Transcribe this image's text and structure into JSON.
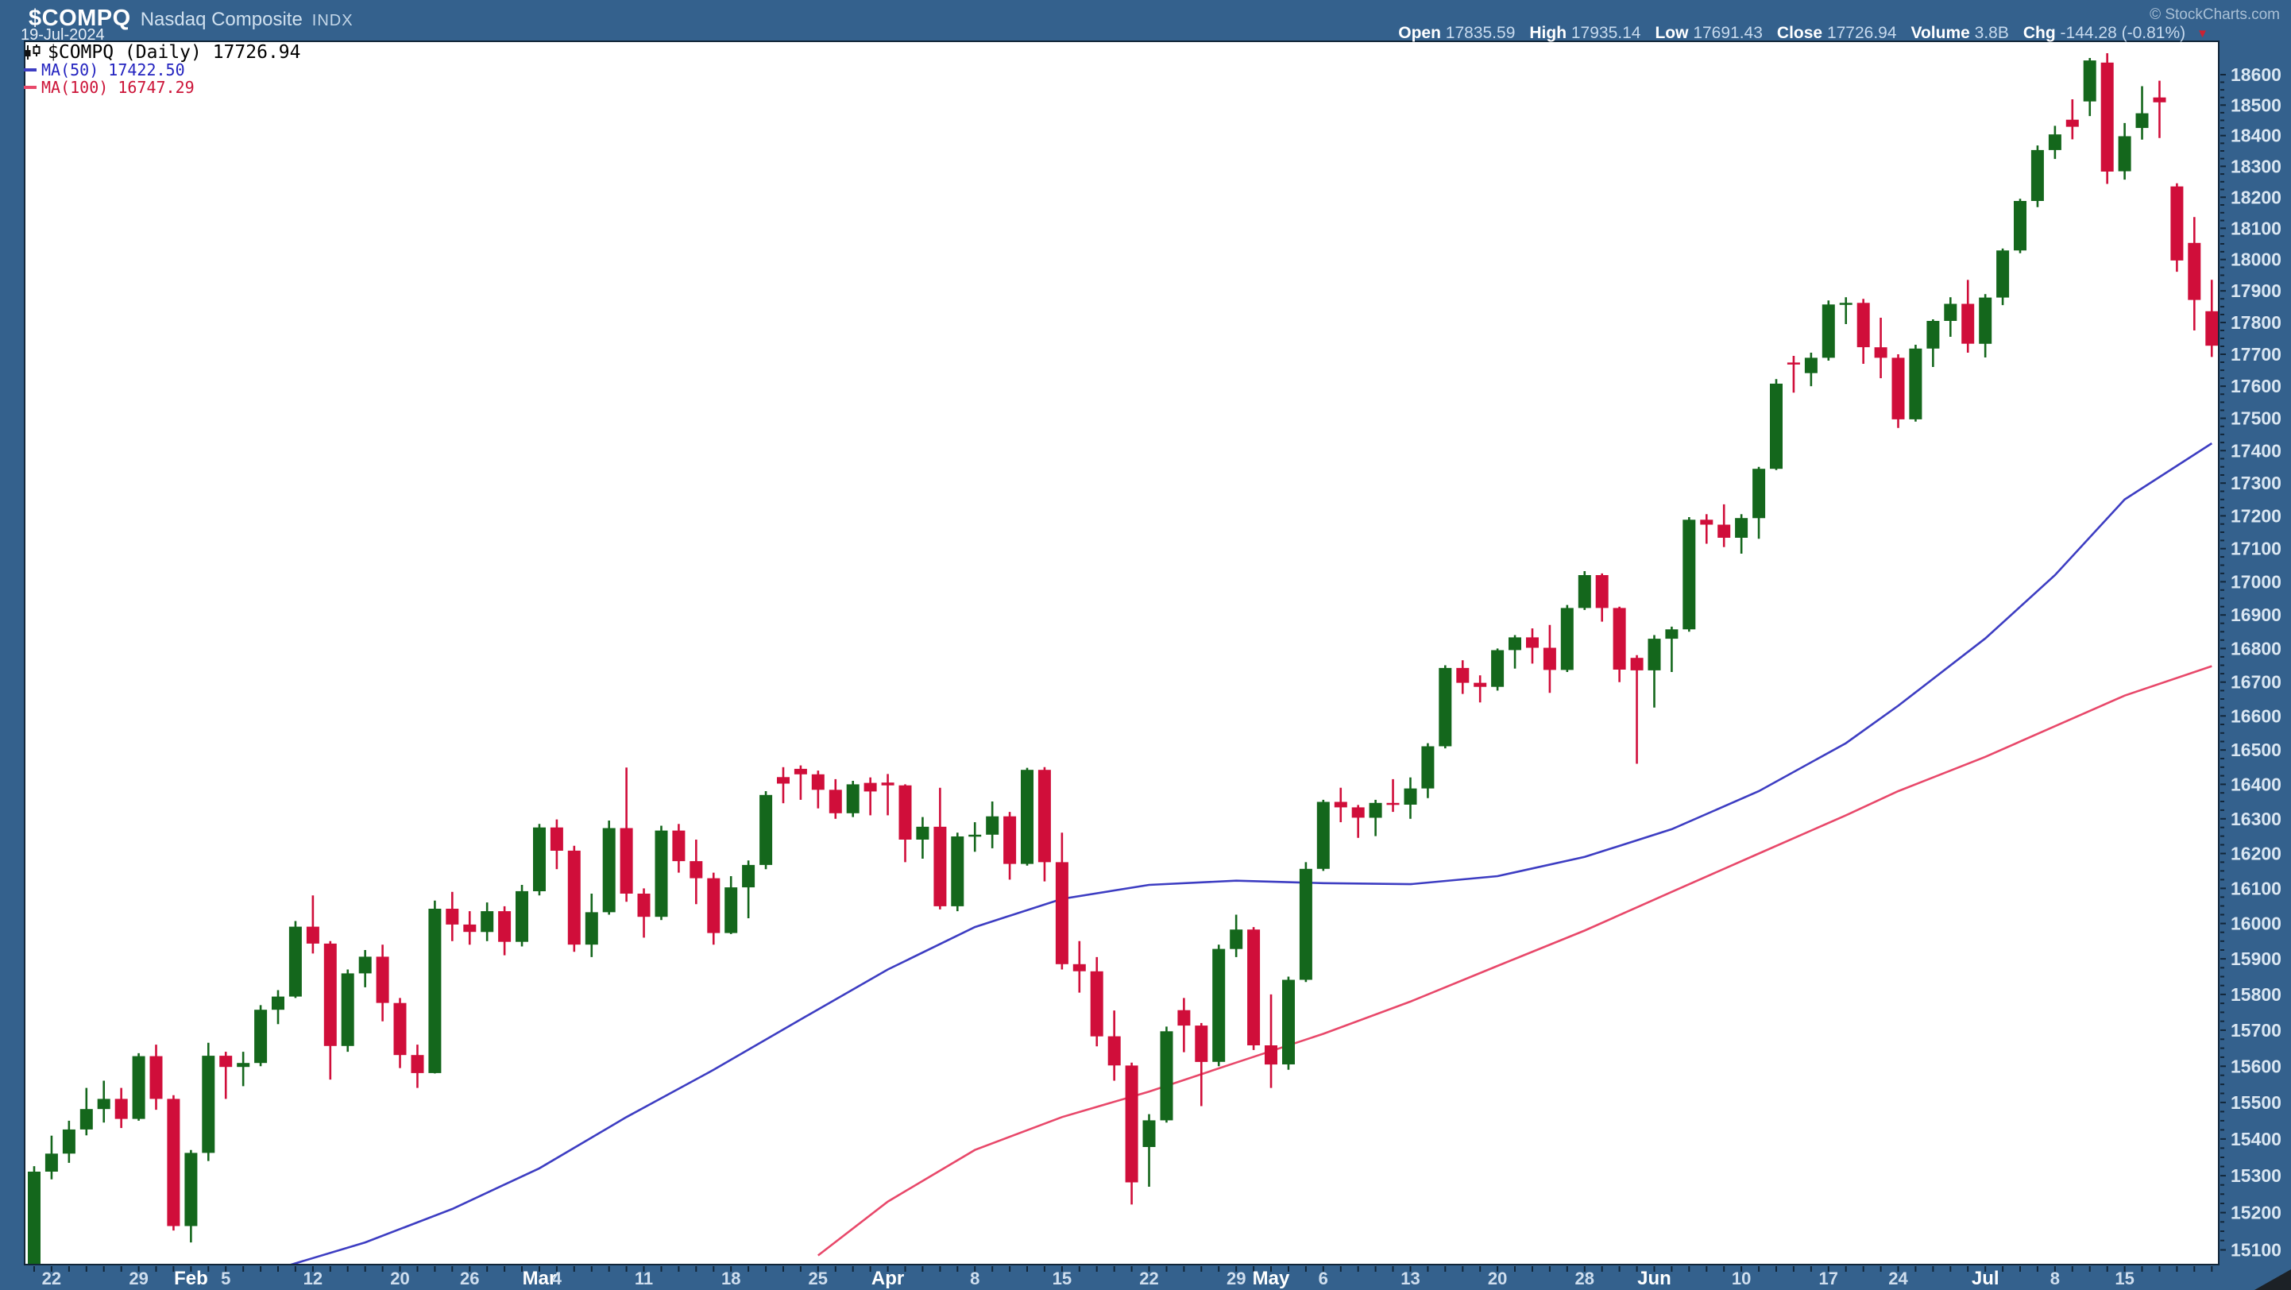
{
  "header": {
    "symbol": "$COMPQ",
    "name": "Nasdaq Composite",
    "exchange": "INDX",
    "date": "19-Jul-2024",
    "copyright": "© StockCharts.com"
  },
  "quote": {
    "open_label": "Open",
    "open": "17835.59",
    "high_label": "High",
    "high": "17935.14",
    "low_label": "Low",
    "low": "17691.43",
    "close_label": "Close",
    "close": "17726.94",
    "volume_label": "Volume",
    "volume": "3.8B",
    "chg_label": "Chg",
    "chg": "-144.28 (-0.81%)"
  },
  "legend": {
    "main": "$COMPQ (Daily) 17726.94",
    "ma50": "MA(50) 17422.50",
    "ma100": "MA(100) 16747.29"
  },
  "colors": {
    "navy": "#34618d",
    "border": "#122639",
    "tick": "#122639",
    "up": "#14671c",
    "down": "#d00e3a",
    "ma50": "#3d3dc2",
    "ma100": "#e8486a",
    "y_label": "#d9e6f2",
    "x_day_label": "#cfdeee",
    "x_month_label": "#ffffff",
    "legend_ma50_text": "#2424c0",
    "legend_ma100_text": "#cc1438"
  },
  "chart_data": {
    "type": "candlestick",
    "symbol": "$COMPQ",
    "timeframe": "Daily",
    "scale": "log",
    "grid": false,
    "y_axis": {
      "min": 15100,
      "max": 18600,
      "label_step": 100,
      "minor_step": 25
    },
    "x_labels": [
      {
        "i": 1,
        "t": "22",
        "bold": false
      },
      {
        "i": 6,
        "t": "29",
        "bold": false
      },
      {
        "i": 9,
        "t": "Feb",
        "bold": true
      },
      {
        "i": 11,
        "t": "5",
        "bold": false
      },
      {
        "i": 16,
        "t": "12",
        "bold": false
      },
      {
        "i": 21,
        "t": "20",
        "bold": false
      },
      {
        "i": 25,
        "t": "26",
        "bold": false
      },
      {
        "i": 29,
        "t": "Mar",
        "bold": true
      },
      {
        "i": 30,
        "t": "4",
        "bold": false
      },
      {
        "i": 35,
        "t": "11",
        "bold": false
      },
      {
        "i": 40,
        "t": "18",
        "bold": false
      },
      {
        "i": 45,
        "t": "25",
        "bold": false
      },
      {
        "i": 49,
        "t": "Apr",
        "bold": true
      },
      {
        "i": 54,
        "t": "8",
        "bold": false
      },
      {
        "i": 59,
        "t": "15",
        "bold": false
      },
      {
        "i": 64,
        "t": "22",
        "bold": false
      },
      {
        "i": 69,
        "t": "29",
        "bold": false
      },
      {
        "i": 71,
        "t": "May",
        "bold": true
      },
      {
        "i": 74,
        "t": "6",
        "bold": false
      },
      {
        "i": 79,
        "t": "13",
        "bold": false
      },
      {
        "i": 84,
        "t": "20",
        "bold": false
      },
      {
        "i": 89,
        "t": "28",
        "bold": false
      },
      {
        "i": 93,
        "t": "Jun",
        "bold": true
      },
      {
        "i": 98,
        "t": "10",
        "bold": false
      },
      {
        "i": 103,
        "t": "17",
        "bold": false
      },
      {
        "i": 107,
        "t": "24",
        "bold": false
      },
      {
        "i": 112,
        "t": "Jul",
        "bold": true
      },
      {
        "i": 116,
        "t": "8",
        "bold": false
      },
      {
        "i": 120,
        "t": "15",
        "bold": false
      }
    ],
    "candles": [
      [
        "Jan 19",
        15056,
        15326,
        15045,
        15311
      ],
      [
        "Jan 22",
        15311,
        15409,
        15290,
        15360
      ],
      [
        "Jan 23",
        15360,
        15450,
        15335,
        15426
      ],
      [
        "Jan 24",
        15426,
        15540,
        15410,
        15482
      ],
      [
        "Jan 25",
        15482,
        15560,
        15445,
        15510
      ],
      [
        "Jan 26",
        15510,
        15540,
        15430,
        15455
      ],
      [
        "Jan 29",
        15455,
        15636,
        15450,
        15628
      ],
      [
        "Jan 30",
        15628,
        15660,
        15480,
        15510
      ],
      [
        "Jan 31",
        15510,
        15520,
        15152,
        15164
      ],
      [
        "Feb 1",
        15164,
        15370,
        15120,
        15362
      ],
      [
        "Feb 2",
        15362,
        15665,
        15340,
        15629
      ],
      [
        "Feb 5",
        15629,
        15640,
        15510,
        15598
      ],
      [
        "Feb 6",
        15598,
        15640,
        15545,
        15609
      ],
      [
        "Feb 7",
        15609,
        15770,
        15600,
        15757
      ],
      [
        "Feb 8",
        15757,
        15812,
        15717,
        15794
      ],
      [
        "Feb 9",
        15794,
        16007,
        15790,
        15991
      ],
      [
        "Feb 12",
        15991,
        16080,
        15915,
        15943
      ],
      [
        "Feb 13",
        15943,
        15950,
        15563,
        15656
      ],
      [
        "Feb 14",
        15656,
        15870,
        15640,
        15859
      ],
      [
        "Feb 15",
        15859,
        15925,
        15820,
        15906
      ],
      [
        "Feb 16",
        15906,
        15940,
        15725,
        15776
      ],
      [
        "Feb 20",
        15776,
        15790,
        15595,
        15631
      ],
      [
        "Feb 21",
        15631,
        15660,
        15540,
        15581
      ],
      [
        "Feb 22",
        15581,
        16065,
        15580,
        16042
      ],
      [
        "Feb 23",
        16042,
        16090,
        15950,
        15997
      ],
      [
        "Feb 26",
        15997,
        16035,
        15940,
        15976
      ],
      [
        "Feb 27",
        15976,
        16060,
        15950,
        16035
      ],
      [
        "Feb 28",
        16035,
        16049,
        15910,
        15948
      ],
      [
        "Feb 29",
        15948,
        16110,
        15935,
        16092
      ],
      [
        "Mar 1",
        16092,
        16285,
        16080,
        16275
      ],
      [
        "Mar 4",
        16275,
        16298,
        16155,
        16208
      ],
      [
        "Mar 5",
        16208,
        16222,
        15920,
        15940
      ],
      [
        "Mar 6",
        15940,
        16085,
        15905,
        16032
      ],
      [
        "Mar 7",
        16032,
        16295,
        16025,
        16273
      ],
      [
        "Mar 8",
        16273,
        16449,
        16062,
        16085
      ],
      [
        "Mar 11",
        16085,
        16100,
        15960,
        16019
      ],
      [
        "Mar 12",
        16019,
        16280,
        16010,
        16266
      ],
      [
        "Mar 13",
        16266,
        16285,
        16145,
        16178
      ],
      [
        "Mar 14",
        16178,
        16240,
        16055,
        16129
      ],
      [
        "Mar 15",
        16129,
        16145,
        15940,
        15973
      ],
      [
        "Mar 18",
        15973,
        16135,
        15970,
        16103
      ],
      [
        "Mar 19",
        16103,
        16180,
        16015,
        16167
      ],
      [
        "Mar 20",
        16167,
        16380,
        16155,
        16369
      ],
      [
        "Mar 21",
        16421,
        16450,
        16345,
        16402
      ],
      [
        "Mar 22",
        16445,
        16455,
        16355,
        16429
      ],
      [
        "Mar 25",
        16429,
        16440,
        16330,
        16384
      ],
      [
        "Mar 26",
        16384,
        16415,
        16300,
        16316
      ],
      [
        "Mar 27",
        16316,
        16410,
        16305,
        16400
      ],
      [
        "Mar 28",
        16404,
        16420,
        16310,
        16379
      ],
      [
        "Apr 1",
        16405,
        16430,
        16310,
        16397
      ],
      [
        "Apr 2",
        16397,
        16400,
        16175,
        16240
      ],
      [
        "Apr 3",
        16240,
        16305,
        16185,
        16277
      ],
      [
        "Apr 4",
        16277,
        16390,
        16040,
        16049
      ],
      [
        "Apr 5",
        16049,
        16260,
        16035,
        16249
      ],
      [
        "Apr 8",
        16249,
        16290,
        16205,
        16254
      ],
      [
        "Apr 9",
        16254,
        16350,
        16215,
        16307
      ],
      [
        "Apr 10",
        16307,
        16320,
        16125,
        16170
      ],
      [
        "Apr 11",
        16170,
        16448,
        16165,
        16442
      ],
      [
        "Apr 12",
        16442,
        16450,
        16120,
        16175
      ],
      [
        "Apr 15",
        16175,
        16260,
        15870,
        15885
      ],
      [
        "Apr 16",
        15885,
        15950,
        15805,
        15865
      ],
      [
        "Apr 17",
        15865,
        15905,
        15655,
        15683
      ],
      [
        "Apr 18",
        15683,
        15755,
        15560,
        15602
      ],
      [
        "Apr 19",
        15602,
        15610,
        15222,
        15282
      ],
      [
        "Apr 22",
        15378,
        15468,
        15270,
        15451
      ],
      [
        "Apr 23",
        15451,
        15710,
        15445,
        15697
      ],
      [
        "Apr 24",
        15756,
        15790,
        15639,
        15713
      ],
      [
        "Apr 25",
        15713,
        15720,
        15490,
        15612
      ],
      [
        "Apr 26",
        15612,
        15940,
        15600,
        15928
      ],
      [
        "Apr 29",
        15928,
        16025,
        15905,
        15983
      ],
      [
        "Apr 30",
        15983,
        15990,
        15645,
        15658
      ],
      [
        "May 1",
        15658,
        15800,
        15540,
        15605
      ],
      [
        "May 2",
        15605,
        15850,
        15590,
        15841
      ],
      [
        "May 3",
        15841,
        16175,
        15835,
        16156
      ],
      [
        "May 6",
        16156,
        16355,
        16150,
        16349
      ],
      [
        "May 7",
        16349,
        16390,
        16290,
        16333
      ],
      [
        "May 8",
        16333,
        16340,
        16245,
        16303
      ],
      [
        "May 9",
        16303,
        16355,
        16250,
        16346
      ],
      [
        "May 10",
        16346,
        16415,
        16320,
        16341
      ],
      [
        "May 13",
        16341,
        16420,
        16300,
        16388
      ],
      [
        "May 14",
        16388,
        16520,
        16360,
        16511
      ],
      [
        "May 15",
        16511,
        16750,
        16505,
        16742
      ],
      [
        "May 16",
        16742,
        16765,
        16665,
        16698
      ],
      [
        "May 17",
        16698,
        16720,
        16640,
        16686
      ],
      [
        "May 20",
        16686,
        16800,
        16675,
        16795
      ],
      [
        "May 21",
        16795,
        16840,
        16740,
        16833
      ],
      [
        "May 22",
        16833,
        16860,
        16755,
        16802
      ],
      [
        "May 23",
        16802,
        16870,
        16668,
        16736
      ],
      [
        "May 24",
        16736,
        16930,
        16730,
        16921
      ],
      [
        "May 28",
        16921,
        17032,
        16915,
        17020
      ],
      [
        "May 29",
        17020,
        17025,
        16880,
        16921
      ],
      [
        "May 30",
        16921,
        16925,
        16700,
        16737
      ],
      [
        "May 31",
        16772,
        16780,
        16460,
        16735
      ],
      [
        "Jun 3",
        16735,
        16840,
        16625,
        16829
      ],
      [
        "Jun 4",
        16829,
        16865,
        16730,
        16857
      ],
      [
        "Jun 5",
        16857,
        17196,
        16850,
        17188
      ],
      [
        "Jun 6",
        17188,
        17205,
        17115,
        17173
      ],
      [
        "Jun 7",
        17173,
        17235,
        17105,
        17133
      ],
      [
        "Jun 10",
        17133,
        17205,
        17085,
        17193
      ],
      [
        "Jun 11",
        17193,
        17350,
        17130,
        17344
      ],
      [
        "Jun 12",
        17344,
        17622,
        17340,
        17608
      ],
      [
        "Jun 13",
        17674,
        17695,
        17580,
        17668
      ],
      [
        "Jun 14",
        17641,
        17705,
        17600,
        17689
      ],
      [
        "Jun 17",
        17689,
        17870,
        17680,
        17857
      ],
      [
        "Jun 18",
        17857,
        17880,
        17795,
        17862
      ],
      [
        "Jun 20",
        17862,
        17875,
        17670,
        17722
      ],
      [
        "Jun 21",
        17722,
        17815,
        17625,
        17689
      ],
      [
        "Jun 24",
        17689,
        17700,
        17470,
        17497
      ],
      [
        "Jun 25",
        17497,
        17730,
        17490,
        17718
      ],
      [
        "Jun 26",
        17718,
        17810,
        17660,
        17805
      ],
      [
        "Jun 27",
        17805,
        17880,
        17755,
        17859
      ],
      [
        "Jun 28",
        17859,
        17935,
        17705,
        17733
      ],
      [
        "Jul 1",
        17733,
        17890,
        17690,
        17879
      ],
      [
        "Jul 2",
        17879,
        18035,
        17855,
        18029
      ],
      [
        "Jul 3",
        18029,
        18195,
        18020,
        18188
      ],
      [
        "Jul 5",
        18188,
        18368,
        18168,
        18353
      ],
      [
        "Jul 8",
        18353,
        18432,
        18324,
        18404
      ],
      [
        "Jul 9",
        18452,
        18519,
        18388,
        18429
      ],
      [
        "Jul 10",
        18512,
        18655,
        18464,
        18647
      ],
      [
        "Jul 11",
        18640,
        18671,
        18243,
        18283
      ],
      [
        "Jul 12",
        18284,
        18441,
        18257,
        18398
      ],
      [
        "Jul 15",
        18425,
        18562,
        18387,
        18473
      ],
      [
        "Jul 16",
        18525,
        18580,
        18392,
        18509
      ],
      [
        "Jul 17",
        18235,
        18245,
        17961,
        17997
      ],
      [
        "Jul 18",
        18053,
        18136,
        17775,
        17871.22
      ],
      [
        "Jul 19",
        17835.59,
        17935.14,
        17691.43,
        17726.94
      ]
    ],
    "ma50": {
      "label": "MA(50)",
      "last": 17422.5,
      "points": [
        [
          14,
          15050
        ],
        [
          19,
          15120
        ],
        [
          24,
          15210
        ],
        [
          29,
          15320
        ],
        [
          34,
          15460
        ],
        [
          39,
          15590
        ],
        [
          44,
          15730
        ],
        [
          49,
          15870
        ],
        [
          54,
          15990
        ],
        [
          59,
          16070
        ],
        [
          64,
          16110
        ],
        [
          69,
          16122
        ],
        [
          74,
          16115
        ],
        [
          79,
          16112
        ],
        [
          84,
          16135
        ],
        [
          89,
          16190
        ],
        [
          94,
          16270
        ],
        [
          99,
          16380
        ],
        [
          104,
          16520
        ],
        [
          107,
          16630
        ],
        [
          112,
          16830
        ],
        [
          116,
          17020
        ],
        [
          120,
          17250
        ],
        [
          125,
          17422.5
        ]
      ]
    },
    "ma100": {
      "label": "MA(100)",
      "last": 16747.29,
      "points": [
        [
          45,
          15085
        ],
        [
          49,
          15230
        ],
        [
          54,
          15370
        ],
        [
          59,
          15460
        ],
        [
          64,
          15530
        ],
        [
          69,
          15610
        ],
        [
          74,
          15690
        ],
        [
          79,
          15780
        ],
        [
          84,
          15880
        ],
        [
          89,
          15980
        ],
        [
          94,
          16090
        ],
        [
          99,
          16200
        ],
        [
          104,
          16310
        ],
        [
          107,
          16380
        ],
        [
          112,
          16480
        ],
        [
          116,
          16570
        ],
        [
          120,
          16660
        ],
        [
          125,
          16747.3
        ]
      ]
    }
  }
}
